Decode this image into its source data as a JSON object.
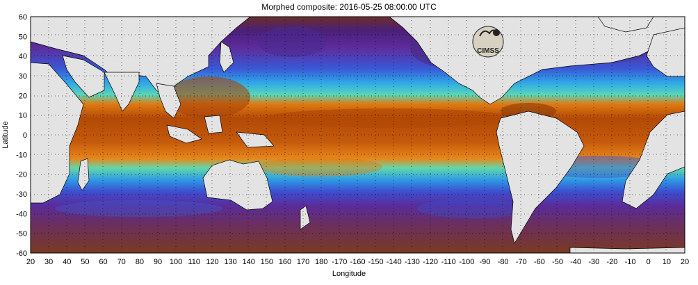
{
  "title": "Morphed composite: 2016-05-25 08:00:00 UTC",
  "logo_text": "CIMSS",
  "axes": {
    "xlabel": "Longitude",
    "ylabel": "Latitude",
    "x_ticks": [
      "20",
      "30",
      "40",
      "50",
      "60",
      "70",
      "80",
      "90",
      "100",
      "110",
      "120",
      "130",
      "140",
      "150",
      "160",
      "170",
      "180",
      "-170",
      "-160",
      "-150",
      "-140",
      "-130",
      "-120",
      "-110",
      "-100",
      "-90",
      "-80",
      "-70",
      "-60",
      "-50",
      "-40",
      "-30",
      "-20",
      "-10",
      "0",
      "10",
      "20"
    ],
    "y_ticks": [
      "60",
      "50",
      "40",
      "30",
      "20",
      "10",
      "0",
      "-10",
      "-20",
      "-30",
      "-40",
      "-50",
      "-60"
    ]
  },
  "colors": {
    "land": "#e3e3e3",
    "dry": "#5a2a7a",
    "very_moist": "#b24a06",
    "moist": "#e07a12"
  },
  "grid": "dotted"
}
